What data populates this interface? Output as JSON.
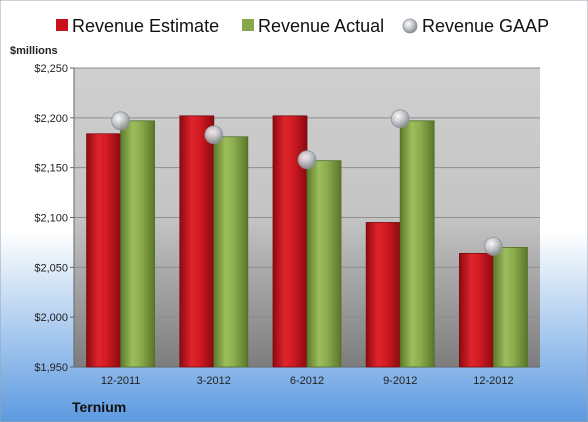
{
  "company": "Ternium",
  "colors": {
    "estimate": "#c8111b",
    "actual": "#86a84a",
    "gaap": "#b9bec6",
    "plot_bg": "#c9c9c9",
    "background_top": "#ffffff",
    "background_bottom": "#5c9ae0"
  },
  "chart_data": {
    "type": "bar",
    "ylabel": "$millions",
    "ylim": [
      1950,
      2250
    ],
    "yticks": [
      "$1,950",
      "$2,000",
      "$2,050",
      "$2,100",
      "$2,150",
      "$2,200",
      "$2,250"
    ],
    "ytick_values": [
      1950,
      2000,
      2050,
      2100,
      2150,
      2200,
      2250
    ],
    "categories": [
      "12-2011",
      "3-2012",
      "6-2012",
      "9-2012",
      "12-2012"
    ],
    "series": [
      {
        "name": "Revenue Estimate",
        "kind": "bar",
        "color_key": "estimate",
        "values": [
          2184,
          2202,
          2202,
          2095,
          2064
        ]
      },
      {
        "name": "Revenue Actual",
        "kind": "bar",
        "color_key": "actual",
        "values": [
          2197,
          2181,
          2157,
          2197,
          2070
        ]
      },
      {
        "name": "Revenue GAAP",
        "kind": "marker",
        "color_key": "gaap",
        "values": [
          2197,
          2183,
          2158,
          2199,
          2071
        ]
      }
    ],
    "grid": true,
    "legend_position": "top"
  }
}
